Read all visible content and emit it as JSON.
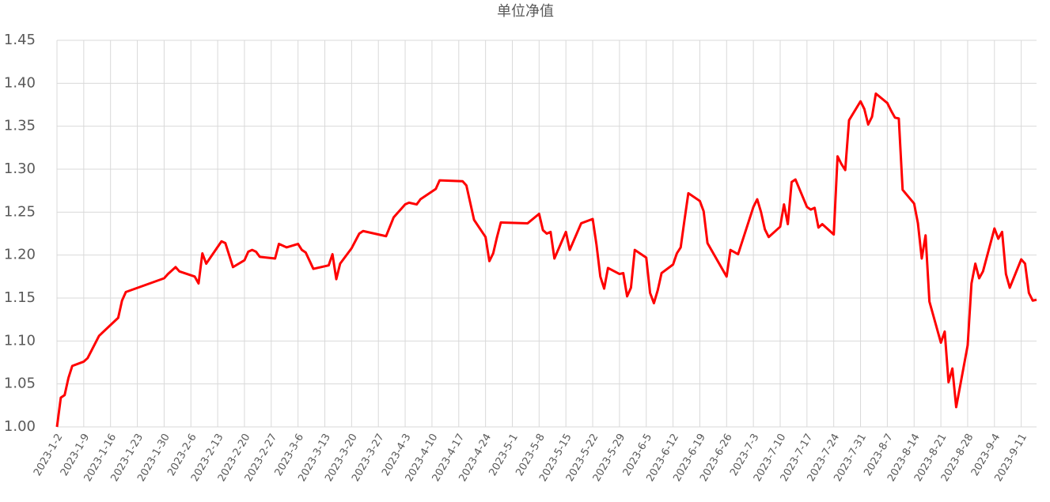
{
  "chart_data": {
    "type": "line",
    "title": "单位净值",
    "color": "#ff0000",
    "grid": true,
    "x": [
      "2023-1-2",
      "2023-1-3",
      "2023-1-4",
      "2023-1-5",
      "2023-1-6",
      "2023-1-9",
      "2023-1-10",
      "2023-1-13",
      "2023-1-18",
      "2023-1-19",
      "2023-1-20",
      "2023-1-30",
      "2023-1-31",
      "2023-2-2",
      "2023-2-3",
      "2023-2-7",
      "2023-2-8",
      "2023-2-9",
      "2023-2-10",
      "2023-2-14",
      "2023-2-15",
      "2023-2-17",
      "2023-2-20",
      "2023-2-21",
      "2023-2-22",
      "2023-2-23",
      "2023-2-24",
      "2023-2-28",
      "2023-3-1",
      "2023-3-3",
      "2023-3-6",
      "2023-3-7",
      "2023-3-8",
      "2023-3-10",
      "2023-3-14",
      "2023-3-15",
      "2023-3-16",
      "2023-3-17",
      "2023-3-20",
      "2023-3-22",
      "2023-3-23",
      "2023-3-29",
      "2023-3-31",
      "2023-4-3",
      "2023-4-4",
      "2023-4-6",
      "2023-4-7",
      "2023-4-11",
      "2023-4-12",
      "2023-4-18",
      "2023-4-19",
      "2023-4-21",
      "2023-4-24",
      "2023-4-25",
      "2023-4-26",
      "2023-4-27",
      "2023-4-28",
      "2023-5-5",
      "2023-5-8",
      "2023-5-9",
      "2023-5-10",
      "2023-5-11",
      "2023-5-12",
      "2023-5-15",
      "2023-5-16",
      "2023-5-19",
      "2023-5-22",
      "2023-5-23",
      "2023-5-24",
      "2023-5-25",
      "2023-5-26",
      "2023-5-29",
      "2023-5-30",
      "2023-5-31",
      "2023-6-1",
      "2023-6-2",
      "2023-6-5",
      "2023-6-6",
      "2023-6-7",
      "2023-6-8",
      "2023-6-9",
      "2023-6-12",
      "2023-6-13",
      "2023-6-14",
      "2023-6-15",
      "2023-6-16",
      "2023-6-19",
      "2023-6-20",
      "2023-6-21",
      "2023-6-26",
      "2023-6-27",
      "2023-6-29",
      "2023-7-3",
      "2023-7-4",
      "2023-7-5",
      "2023-7-6",
      "2023-7-7",
      "2023-7-10",
      "2023-7-11",
      "2023-7-12",
      "2023-7-13",
      "2023-7-14",
      "2023-7-17",
      "2023-7-18",
      "2023-7-19",
      "2023-7-20",
      "2023-7-21",
      "2023-7-24",
      "2023-7-25",
      "2023-7-26",
      "2023-7-27",
      "2023-7-28",
      "2023-7-31",
      "2023-8-1",
      "2023-8-2",
      "2023-8-3",
      "2023-8-4",
      "2023-8-7",
      "2023-8-8",
      "2023-8-9",
      "2023-8-10",
      "2023-8-11",
      "2023-8-14",
      "2023-8-15",
      "2023-8-16",
      "2023-8-17",
      "2023-8-18",
      "2023-8-21",
      "2023-8-22",
      "2023-8-23",
      "2023-8-24",
      "2023-8-25",
      "2023-8-28",
      "2023-8-29",
      "2023-8-30",
      "2023-8-31",
      "2023-9-1",
      "2023-9-4",
      "2023-9-5",
      "2023-9-6",
      "2023-9-7",
      "2023-9-8",
      "2023-9-11",
      "2023-9-12",
      "2023-9-13",
      "2023-9-14",
      "2023-9-15"
    ],
    "values": [
      1.0,
      1.034,
      1.037,
      1.057,
      1.071,
      1.076,
      1.08,
      1.106,
      1.127,
      1.147,
      1.157,
      1.173,
      1.178,
      1.186,
      1.181,
      1.175,
      1.167,
      1.202,
      1.19,
      1.216,
      1.214,
      1.186,
      1.194,
      1.204,
      1.206,
      1.204,
      1.198,
      1.196,
      1.213,
      1.209,
      1.213,
      1.206,
      1.203,
      1.184,
      1.188,
      1.201,
      1.172,
      1.19,
      1.208,
      1.225,
      1.228,
      1.222,
      1.244,
      1.259,
      1.261,
      1.259,
      1.265,
      1.277,
      1.287,
      1.286,
      1.281,
      1.241,
      1.221,
      1.193,
      1.202,
      1.221,
      1.238,
      1.237,
      1.248,
      1.229,
      1.225,
      1.227,
      1.196,
      1.227,
      1.206,
      1.237,
      1.242,
      1.212,
      1.175,
      1.161,
      1.185,
      1.178,
      1.179,
      1.152,
      1.162,
      1.206,
      1.197,
      1.156,
      1.144,
      1.159,
      1.179,
      1.189,
      1.202,
      1.209,
      1.241,
      1.272,
      1.263,
      1.251,
      1.214,
      1.175,
      1.206,
      1.201,
      1.256,
      1.265,
      1.25,
      1.23,
      1.221,
      1.233,
      1.259,
      1.236,
      1.285,
      1.288,
      1.256,
      1.253,
      1.255,
      1.232,
      1.236,
      1.224,
      1.315,
      1.306,
      1.299,
      1.357,
      1.379,
      1.37,
      1.352,
      1.361,
      1.388,
      1.377,
      1.368,
      1.36,
      1.359,
      1.276,
      1.26,
      1.237,
      1.196,
      1.223,
      1.146,
      1.098,
      1.111,
      1.052,
      1.068,
      1.023,
      1.095,
      1.167,
      1.19,
      1.173,
      1.181,
      1.231,
      1.219,
      1.227,
      1.178,
      1.162,
      1.195,
      1.19,
      1.156,
      1.147,
      1.148
    ],
    "xlim": [
      "2023-1-2",
      "2023-9-15"
    ],
    "xticks": [
      "2023-1-2",
      "2023-1-9",
      "2023-1-16",
      "2023-1-23",
      "2023-1-30",
      "2023-2-6",
      "2023-2-13",
      "2023-2-20",
      "2023-2-27",
      "2023-3-6",
      "2023-3-13",
      "2023-3-20",
      "2023-3-27",
      "2023-4-3",
      "2023-4-10",
      "2023-4-17",
      "2023-4-24",
      "2023-5-1",
      "2023-5-8",
      "2023-5-15",
      "2023-5-22",
      "2023-5-29",
      "2023-6-5",
      "2023-6-12",
      "2023-6-19",
      "2023-6-26",
      "2023-7-3",
      "2023-7-10",
      "2023-7-17",
      "2023-7-24",
      "2023-7-31",
      "2023-8-7",
      "2023-8-14",
      "2023-8-21",
      "2023-8-28",
      "2023-9-4",
      "2023-9-11"
    ],
    "ylim": [
      1.0,
      1.45
    ],
    "yticks": [
      {
        "value": 1.0,
        "label": "1.00"
      },
      {
        "value": 1.05,
        "label": "1.05"
      },
      {
        "value": 1.1,
        "label": "1.10"
      },
      {
        "value": 1.15,
        "label": "1.15"
      },
      {
        "value": 1.2,
        "label": "1.20"
      },
      {
        "value": 1.25,
        "label": "1.25"
      },
      {
        "value": 1.3,
        "label": "1.30"
      },
      {
        "value": 1.35,
        "label": "1.35"
      },
      {
        "value": 1.4,
        "label": "1.40"
      },
      {
        "value": 1.45,
        "label": "1.45"
      }
    ]
  }
}
